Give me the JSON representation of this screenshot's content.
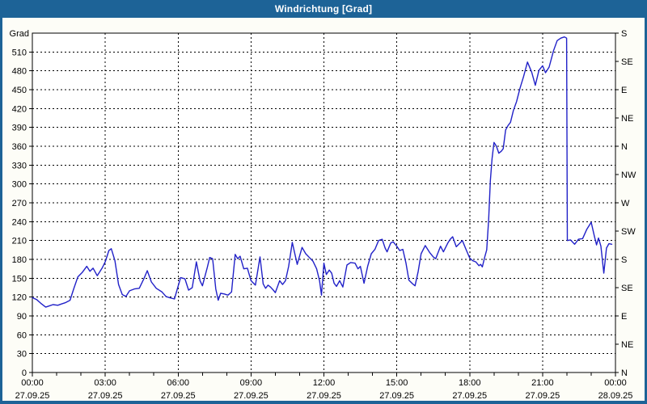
{
  "window": {
    "title": "Windrichtung [Grad]"
  },
  "colors": {
    "frame": "#1d6397",
    "title_text": "#ffffff",
    "chart_background": "#fdfdf7",
    "plot_background": "#ffffff",
    "plot_border": "#000000",
    "grid": "#000000",
    "axis_text": "#000000",
    "line": "#2121c8"
  },
  "chart_data": {
    "type": "line",
    "title": "Windrichtung [Grad]",
    "grid": {
      "style": "dashed",
      "h_step_grad": 30,
      "v_step_hours": 3
    },
    "y_axis_left": {
      "title": "Grad",
      "min": 0,
      "max": 540,
      "tick_step": 30,
      "tick_labels": [
        "0",
        "30",
        "60",
        "90",
        "120",
        "150",
        "180",
        "210",
        "240",
        "270",
        "300",
        "330",
        "360",
        "390",
        "420",
        "450",
        "480",
        "510"
      ]
    },
    "y_axis_right": {
      "tick_step": 45,
      "tick_labels_bottom_to_top": [
        "N",
        "NE",
        "E",
        "SE",
        "S",
        "SW",
        "W",
        "NW",
        "N",
        "NE",
        "E",
        "SE",
        "S"
      ]
    },
    "x_axis": {
      "span_hours": 24,
      "major_step_hours": 3,
      "minor_step_hours": 1,
      "ticks": [
        {
          "time": "00:00",
          "date": "27.09.25"
        },
        {
          "time": "03:00",
          "date": "27.09.25"
        },
        {
          "time": "06:00",
          "date": "27.09.25"
        },
        {
          "time": "09:00",
          "date": "27.09.25"
        },
        {
          "time": "12:00",
          "date": "27.09.25"
        },
        {
          "time": "15:00",
          "date": "27.09.25"
        },
        {
          "time": "18:00",
          "date": "27.09.25"
        },
        {
          "time": "21:00",
          "date": "27.09.25"
        },
        {
          "time": "00:00",
          "date": "28.09.25"
        }
      ]
    },
    "series": [
      {
        "name": "Windrichtung",
        "color": "#2121c8",
        "points": [
          [
            0.0,
            119
          ],
          [
            0.18,
            116
          ],
          [
            0.35,
            110
          ],
          [
            0.55,
            104
          ],
          [
            0.7,
            106
          ],
          [
            0.85,
            108
          ],
          [
            1.05,
            107
          ],
          [
            1.2,
            109
          ],
          [
            1.35,
            111
          ],
          [
            1.55,
            115
          ],
          [
            1.7,
            133
          ],
          [
            1.87,
            152
          ],
          [
            2.05,
            159
          ],
          [
            2.24,
            169
          ],
          [
            2.37,
            161
          ],
          [
            2.5,
            166
          ],
          [
            2.67,
            154
          ],
          [
            2.87,
            166
          ],
          [
            3.0,
            176
          ],
          [
            3.15,
            194
          ],
          [
            3.25,
            197
          ],
          [
            3.4,
            178
          ],
          [
            3.55,
            140
          ],
          [
            3.7,
            124
          ],
          [
            3.85,
            121
          ],
          [
            4.0,
            130
          ],
          [
            4.2,
            133
          ],
          [
            4.4,
            134
          ],
          [
            4.6,
            150
          ],
          [
            4.73,
            162
          ],
          [
            4.9,
            144
          ],
          [
            5.1,
            134
          ],
          [
            5.34,
            128
          ],
          [
            5.5,
            121
          ],
          [
            5.65,
            119
          ],
          [
            5.85,
            117
          ],
          [
            6.1,
            151
          ],
          [
            6.28,
            149
          ],
          [
            6.43,
            131
          ],
          [
            6.58,
            135
          ],
          [
            6.75,
            176
          ],
          [
            6.9,
            146
          ],
          [
            7.0,
            138
          ],
          [
            7.2,
            167
          ],
          [
            7.3,
            183
          ],
          [
            7.42,
            181
          ],
          [
            7.55,
            133
          ],
          [
            7.65,
            115
          ],
          [
            7.75,
            126
          ],
          [
            7.9,
            125
          ],
          [
            8.05,
            123
          ],
          [
            8.2,
            128
          ],
          [
            8.35,
            188
          ],
          [
            8.45,
            181
          ],
          [
            8.55,
            185
          ],
          [
            8.7,
            165
          ],
          [
            8.85,
            166
          ],
          [
            9.0,
            146
          ],
          [
            9.18,
            139
          ],
          [
            9.37,
            184
          ],
          [
            9.5,
            141
          ],
          [
            9.6,
            134
          ],
          [
            9.7,
            139
          ],
          [
            9.8,
            136
          ],
          [
            9.92,
            131
          ],
          [
            10.0,
            127
          ],
          [
            10.18,
            146
          ],
          [
            10.3,
            140
          ],
          [
            10.42,
            146
          ],
          [
            10.55,
            169
          ],
          [
            10.7,
            207
          ],
          [
            10.9,
            172
          ],
          [
            11.1,
            199
          ],
          [
            11.25,
            189
          ],
          [
            11.4,
            183
          ],
          [
            11.55,
            177
          ],
          [
            11.7,
            165
          ],
          [
            11.82,
            146
          ],
          [
            11.9,
            123
          ],
          [
            12.0,
            174
          ],
          [
            12.1,
            156
          ],
          [
            12.22,
            163
          ],
          [
            12.32,
            158
          ],
          [
            12.42,
            142
          ],
          [
            12.52,
            137
          ],
          [
            12.65,
            146
          ],
          [
            12.78,
            136
          ],
          [
            12.95,
            171
          ],
          [
            13.1,
            175
          ],
          [
            13.28,
            174
          ],
          [
            13.4,
            165
          ],
          [
            13.5,
            169
          ],
          [
            13.65,
            142
          ],
          [
            13.8,
            169
          ],
          [
            13.95,
            189
          ],
          [
            14.1,
            196
          ],
          [
            14.25,
            210
          ],
          [
            14.4,
            212
          ],
          [
            14.52,
            198
          ],
          [
            14.6,
            192
          ],
          [
            14.75,
            206
          ],
          [
            14.85,
            208
          ],
          [
            15.0,
            201
          ],
          [
            15.12,
            194
          ],
          [
            15.25,
            196
          ],
          [
            15.38,
            174
          ],
          [
            15.5,
            147
          ],
          [
            15.65,
            141
          ],
          [
            15.75,
            138
          ],
          [
            15.88,
            161
          ],
          [
            16.0,
            189
          ],
          [
            16.17,
            202
          ],
          [
            16.35,
            191
          ],
          [
            16.5,
            184
          ],
          [
            16.6,
            181
          ],
          [
            16.8,
            201
          ],
          [
            16.92,
            192
          ],
          [
            17.1,
            206
          ],
          [
            17.2,
            212
          ],
          [
            17.3,
            216
          ],
          [
            17.45,
            200
          ],
          [
            17.55,
            204
          ],
          [
            17.7,
            210
          ],
          [
            17.85,
            196
          ],
          [
            18.0,
            182
          ],
          [
            18.12,
            178
          ],
          [
            18.25,
            176
          ],
          [
            18.38,
            170
          ],
          [
            18.45,
            172
          ],
          [
            18.52,
            168
          ],
          [
            18.62,
            184
          ],
          [
            18.7,
            195
          ],
          [
            18.78,
            243
          ],
          [
            18.85,
            305
          ],
          [
            18.92,
            340
          ],
          [
            19.0,
            366
          ],
          [
            19.1,
            360
          ],
          [
            19.2,
            349
          ],
          [
            19.3,
            352
          ],
          [
            19.38,
            356
          ],
          [
            19.48,
            386
          ],
          [
            19.58,
            393
          ],
          [
            19.68,
            398
          ],
          [
            19.8,
            417
          ],
          [
            19.93,
            431
          ],
          [
            20.07,
            452
          ],
          [
            20.22,
            471
          ],
          [
            20.38,
            494
          ],
          [
            20.55,
            478
          ],
          [
            20.7,
            457
          ],
          [
            20.85,
            481
          ],
          [
            21.0,
            488
          ],
          [
            21.12,
            477
          ],
          [
            21.27,
            486
          ],
          [
            21.45,
            512
          ],
          [
            21.6,
            528
          ],
          [
            21.75,
            532
          ],
          [
            21.9,
            534
          ],
          [
            21.99,
            532
          ],
          [
            22.02,
            210
          ],
          [
            22.15,
            211
          ],
          [
            22.32,
            204
          ],
          [
            22.48,
            212
          ],
          [
            22.65,
            213
          ],
          [
            22.82,
            228
          ],
          [
            23.0,
            239
          ],
          [
            23.13,
            217
          ],
          [
            23.22,
            203
          ],
          [
            23.3,
            214
          ],
          [
            23.4,
            201
          ],
          [
            23.52,
            158
          ],
          [
            23.63,
            198
          ],
          [
            23.73,
            205
          ],
          [
            23.85,
            204
          ]
        ]
      }
    ]
  }
}
